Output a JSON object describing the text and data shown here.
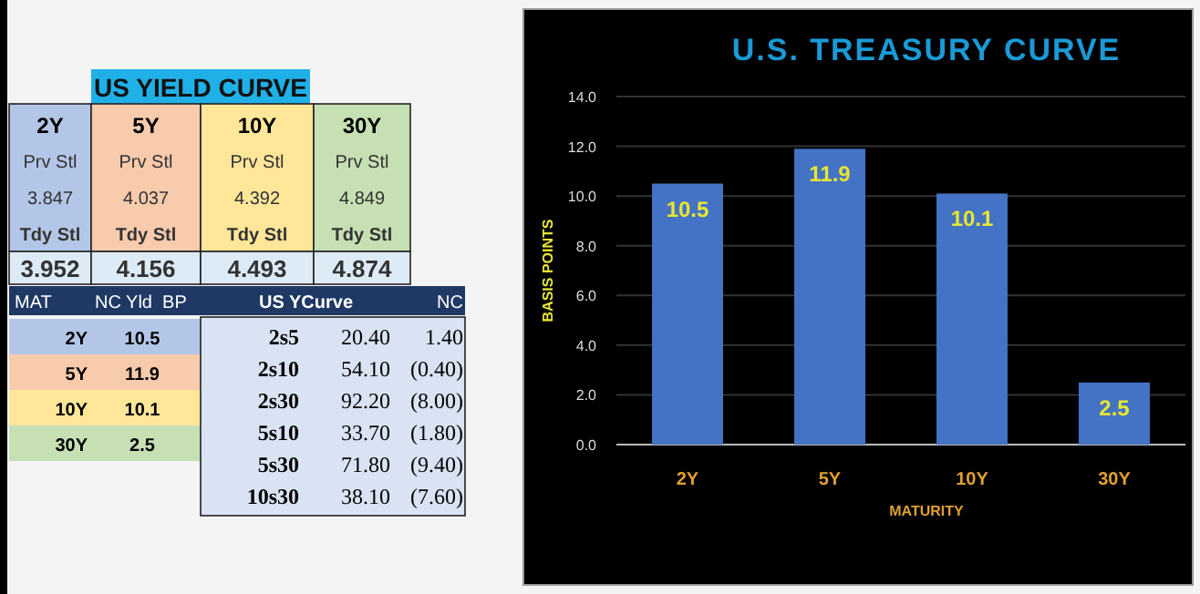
{
  "chart_data": [
    {
      "type": "other",
      "title": "US YIELD CURVE",
      "categories": [
        "2Y",
        "5Y",
        "10Y",
        "30Y"
      ],
      "data_labels": true,
      "series": [
        {
          "name": "Prv Stl",
          "values": [
            3.847,
            4.037,
            4.392,
            4.849
          ],
          "colors": [
            "#b4c6e7",
            "#f8cbad",
            "#ffe699",
            "#c6e0b4"
          ]
        },
        {
          "name": "Tdy Stl",
          "values": [
            3.952,
            4.156,
            4.493,
            4.874
          ],
          "colors": [
            "#ddebf7",
            "#ddebf7",
            "#ddebf7",
            "#ddebf7"
          ]
        }
      ]
    },
    {
      "type": "other",
      "annotations": [
        "MAT",
        "NC Yld  BP"
      ],
      "categories": [
        "2Y",
        "5Y",
        "10Y",
        "30Y"
      ],
      "colors": [
        "#b4c6e7",
        "#f8cbad",
        "#ffe699",
        "#c6e0b4"
      ],
      "values": [
        10.5,
        11.9,
        10.1,
        2.5
      ],
      "data_labels": true
    },
    {
      "type": "other",
      "categories": [
        "2s5",
        "2s10",
        "2s30",
        "5s10",
        "5s30",
        "10s30"
      ],
      "series": [
        {
          "name": "US YCurve",
          "values": [
            20.4,
            54.1,
            92.2,
            33.7,
            71.8,
            38.1
          ],
          "value_labels": [
            "20.40",
            "54.10",
            "92.20",
            "33.70",
            "71.80",
            "38.10"
          ]
        },
        {
          "name": "NC",
          "values": [
            1.4,
            -0.4,
            -8.0,
            -1.8,
            -9.4,
            -7.6
          ],
          "value_labels": [
            "1.40",
            "(0.40)",
            "(8.00)",
            "(1.80)",
            "(9.40)",
            "(7.60)"
          ]
        }
      ]
    },
    {
      "type": "bar",
      "title": "U.S. TREASURY CURVE",
      "xlabel": "MATURITY",
      "ylabel": "BASIS POINTS",
      "categories": [
        "2Y",
        "5Y",
        "10Y",
        "30Y"
      ],
      "values": [
        10.5,
        11.9,
        10.1,
        2.5
      ],
      "color": "#4472c4",
      "ylim": [
        0,
        14
      ],
      "yticks": [
        {
          "value": 0,
          "label": "0.0"
        },
        {
          "value": 2,
          "label": "2.0"
        },
        {
          "value": 4,
          "label": "4.0"
        },
        {
          "value": 6,
          "label": "6.0"
        },
        {
          "value": 8,
          "label": "8.0"
        },
        {
          "value": 10,
          "label": "10.0"
        },
        {
          "value": 12,
          "label": "12.0"
        },
        {
          "value": 14,
          "label": "14.0"
        }
      ],
      "grid": "y",
      "data_labels": true
    }
  ]
}
